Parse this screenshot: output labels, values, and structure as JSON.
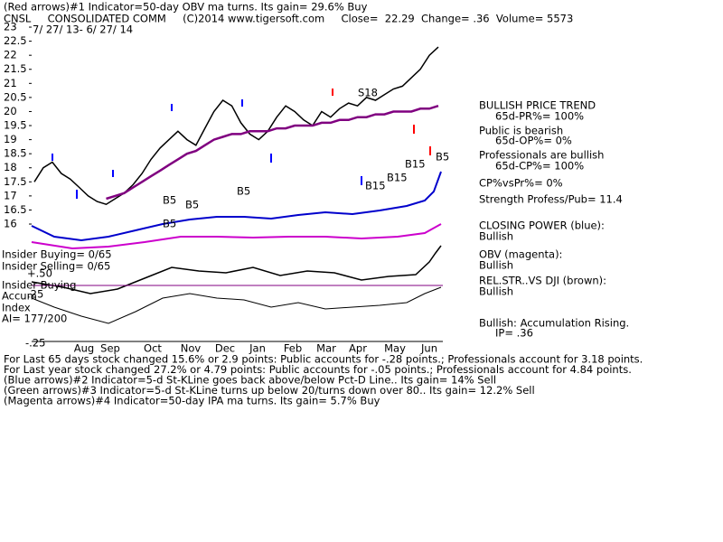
{
  "chart_data": {
    "type": "line",
    "title": "(Red arrows)#1 Indicator=50-day OBV ma turns. Its gain= 29.6% Buy",
    "subtitle": "CNSL     CONSOLIDATED COMM     (C)2014 www.tigersoft.com     Close=  22.29  Change= .36  Volume= 5573",
    "date_range": "7/ 27/ 13- 6/ 27/ 14",
    "ylim": [
      15.5,
      23.2
    ],
    "yticks": [
      23,
      22.5,
      22,
      21.5,
      21,
      20.5,
      20,
      19.5,
      19,
      18.5,
      18,
      17.5,
      17,
      16.5,
      16
    ],
    "months": [
      "Aug",
      "Sep",
      "Oct",
      "Nov",
      "Dec",
      "Jan",
      "Feb",
      "Mar",
      "Apr",
      "May",
      "Jun"
    ],
    "series": [
      {
        "color": "#000000",
        "values": [
          17.5,
          18.0,
          18.2,
          17.8,
          17.6,
          17.3,
          17.0,
          16.8,
          16.7,
          16.9,
          17.1,
          17.4,
          17.8,
          18.3,
          18.7,
          19.0,
          19.3,
          19.0,
          18.8,
          19.4,
          20.0,
          20.4,
          20.2,
          19.6,
          19.2,
          19.0,
          19.3,
          19.8,
          20.2,
          20.0,
          19.7,
          19.5,
          20.0,
          19.8,
          20.1,
          20.3,
          20.2,
          20.5,
          20.4,
          20.6,
          20.8,
          20.9,
          21.2,
          21.5,
          22.0,
          22.29
        ]
      },
      {
        "color": "#800080",
        "values": [
          null,
          null,
          null,
          null,
          null,
          null,
          null,
          null,
          16.9,
          17.0,
          17.1,
          17.3,
          17.5,
          17.7,
          17.9,
          18.1,
          18.3,
          18.5,
          18.6,
          18.8,
          19.0,
          19.1,
          19.2,
          19.2,
          19.3,
          19.3,
          19.3,
          19.4,
          19.4,
          19.5,
          19.5,
          19.5,
          19.6,
          19.6,
          19.7,
          19.7,
          19.8,
          19.8,
          19.9,
          19.9,
          20.0,
          20.0,
          20.0,
          20.1,
          20.1,
          20.2
        ]
      }
    ],
    "annotations": [
      "B5",
      "B5",
      "B5",
      "B5",
      "S18",
      "B15",
      "B15",
      "B15",
      "B5"
    ],
    "left_labels": [
      "Insider Buying= 0/65",
      "Insider Selling= 0/65",
      "+.50",
      "Insider Buying",
      "Accum",
      ".25",
      "Index",
      "AI= 177/200",
      "-.25"
    ],
    "right_panel": [
      "BULLISH PRICE TREND",
      "65d-PR%= 100%",
      "Public is bearish",
      "65d-OP%= 0%",
      "Professionals are bullish",
      "65d-CP%= 100%",
      "CP%vsPr%=  0%",
      "Strength Profess/Pub= 11.4",
      "CLOSING POWER (blue):",
      "Bullish",
      "OBV (magenta):",
      "Bullish",
      "REL.STR..VS DJI (brown):",
      "Bullish",
      "Bullish: Accumulation Rising.",
      "IP=  .36"
    ],
    "footer_lines": [
      "For Last 65 days stock changed  15.6% or  2.9 points:  Public accounts for -.28 points.;  Professionals account for  3.18 points.",
      "For Last year stock changed  27.2% or  4.79 points:  Public accounts for -.05 points.;  Professionals account for  4.84 points.",
      "(Blue arrows)#2 Indicator=5-d St-KLine goes back above/below Pct-D Line.. Its gain= 14% Sell",
      "(Green arrows)#3 Indicator=5-d St-KLine turns up below 20/turns down over 80.. Its gain= 12.2% Sell",
      "(Magenta arrows)#4 Indicator=50-day IPA ma turns. Its gain= 5.7% Buy"
    ]
  }
}
